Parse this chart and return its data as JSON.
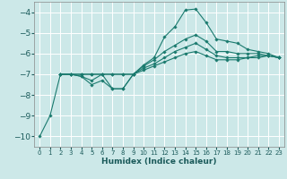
{
  "xlabel": "Humidex (Indice chaleur)",
  "bg_color": "#cce8e8",
  "grid_color": "#b8d8d8",
  "line_color": "#1a7a6e",
  "xlim": [
    -0.5,
    23.5
  ],
  "ylim": [
    -10.5,
    -3.5
  ],
  "yticks": [
    -10,
    -9,
    -8,
    -7,
    -6,
    -5,
    -4
  ],
  "xticks": [
    0,
    1,
    2,
    3,
    4,
    5,
    6,
    7,
    8,
    9,
    10,
    11,
    12,
    13,
    14,
    15,
    16,
    17,
    18,
    19,
    20,
    21,
    22,
    23
  ],
  "lines": [
    {
      "x": [
        2,
        3,
        4,
        5,
        6,
        7,
        8,
        9,
        10,
        11,
        12,
        13,
        14,
        15,
        16,
        17,
        18,
        19,
        20,
        21,
        22,
        23
      ],
      "y": [
        -7.0,
        -7.0,
        -7.0,
        -7.0,
        -7.0,
        -7.0,
        -7.0,
        -7.0,
        -6.8,
        -6.6,
        -6.4,
        -6.2,
        -6.0,
        -5.9,
        -6.1,
        -6.3,
        -6.3,
        -6.3,
        -6.2,
        -6.1,
        -6.1,
        -6.2
      ]
    },
    {
      "x": [
        2,
        3,
        4,
        5,
        6,
        7,
        8,
        9,
        10,
        11,
        12,
        13,
        14,
        15,
        16,
        17,
        18,
        19,
        20,
        21,
        22,
        23
      ],
      "y": [
        -7.0,
        -7.0,
        -7.0,
        -7.0,
        -7.0,
        -7.0,
        -7.0,
        -7.0,
        -6.7,
        -6.5,
        -6.2,
        -5.9,
        -5.7,
        -5.5,
        -5.8,
        -6.1,
        -6.2,
        -6.2,
        -6.2,
        -6.2,
        -6.1,
        -6.2
      ]
    },
    {
      "x": [
        2,
        3,
        4,
        5,
        6,
        7,
        8,
        9,
        10,
        11,
        12,
        13,
        14,
        15,
        16,
        17,
        18,
        19,
        20,
        21,
        22,
        23
      ],
      "y": [
        -7.0,
        -7.0,
        -7.1,
        -7.3,
        -7.0,
        -7.7,
        -7.7,
        -7.0,
        -6.6,
        -6.3,
        -5.9,
        -5.6,
        -5.3,
        -5.1,
        -5.4,
        -5.9,
        -5.9,
        -6.0,
        -6.0,
        -6.0,
        -6.1,
        -6.2
      ]
    },
    {
      "x": [
        0,
        1,
        2,
        3,
        4,
        5,
        6,
        7,
        8,
        9,
        10,
        11,
        12,
        13,
        14,
        15,
        16,
        17,
        18,
        19,
        20,
        21,
        22,
        23
      ],
      "y": [
        -10.0,
        -9.0,
        -7.0,
        -7.0,
        -7.1,
        -7.5,
        -7.3,
        -7.7,
        -7.7,
        -7.0,
        -6.55,
        -6.2,
        -5.2,
        -4.7,
        -3.9,
        -3.85,
        -4.5,
        -5.3,
        -5.4,
        -5.5,
        -5.8,
        -5.9,
        -6.0,
        -6.2
      ]
    }
  ]
}
